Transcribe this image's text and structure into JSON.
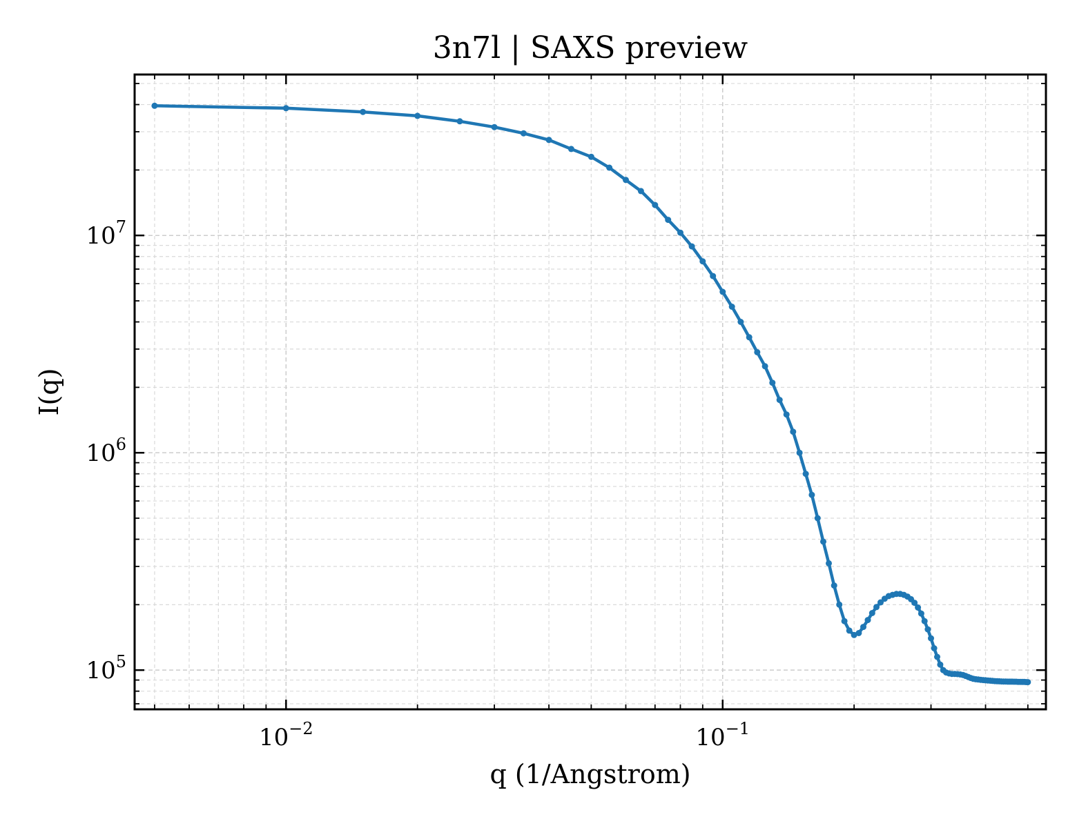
{
  "chart_data": {
    "type": "line",
    "title": "3n7l | SAXS preview",
    "xlabel": "q (1/Angstrom)",
    "ylabel": "I(q)",
    "xscale": "log",
    "yscale": "log",
    "xlim": [
      0.0045,
      0.55
    ],
    "ylim": [
      66000,
      55000000
    ],
    "grid": "on",
    "x_ticks": [
      {
        "value": 0.01,
        "base": "10",
        "exp": "−2"
      },
      {
        "value": 0.1,
        "base": "10",
        "exp": "−1"
      }
    ],
    "y_ticks": [
      {
        "value": 100000,
        "base": "10",
        "exp": "5"
      },
      {
        "value": 1000000,
        "base": "10",
        "exp": "6"
      },
      {
        "value": 10000000,
        "base": "10",
        "exp": "7"
      }
    ],
    "color": "#1f77b4",
    "series": [
      {
        "x": [
          0.005,
          0.01,
          0.015,
          0.02,
          0.025,
          0.03,
          0.035,
          0.04,
          0.045,
          0.05,
          0.055,
          0.06,
          0.065,
          0.07,
          0.075,
          0.08,
          0.085,
          0.09,
          0.095,
          0.1,
          0.105,
          0.11,
          0.115,
          0.12,
          0.125,
          0.13,
          0.135,
          0.14,
          0.145,
          0.15,
          0.155,
          0.16,
          0.165,
          0.17,
          0.175,
          0.18,
          0.185,
          0.19,
          0.195,
          0.2,
          0.205,
          0.21,
          0.215,
          0.22,
          0.225,
          0.23,
          0.235,
          0.24,
          0.245,
          0.25,
          0.255,
          0.26,
          0.265,
          0.27,
          0.275,
          0.28,
          0.285,
          0.29,
          0.295,
          0.3,
          0.305,
          0.31,
          0.315,
          0.32,
          0.325,
          0.33,
          0.335,
          0.34,
          0.345,
          0.35,
          0.355,
          0.36,
          0.365,
          0.37,
          0.375,
          0.38,
          0.385,
          0.39,
          0.395,
          0.4,
          0.405,
          0.41,
          0.415,
          0.42,
          0.425,
          0.43,
          0.435,
          0.44,
          0.445,
          0.45,
          0.455,
          0.46,
          0.465,
          0.47,
          0.475,
          0.48,
          0.485,
          0.49,
          0.495,
          0.5
        ],
        "y": [
          39500000,
          38500000,
          37000000,
          35500000,
          33500000,
          31500000,
          29500000,
          27500000,
          25000000,
          23000000,
          20500000,
          18000000,
          16000000,
          13800000,
          11800000,
          10300000,
          8900000,
          7600000,
          6500000,
          5500000,
          4700000,
          4000000,
          3400000,
          2900000,
          2500000,
          2100000,
          1750000,
          1500000,
          1250000,
          1000000,
          800000,
          640000,
          500000,
          390000,
          310000,
          245000,
          200000,
          168000,
          152000,
          145000,
          148000,
          158000,
          170000,
          183000,
          195000,
          205000,
          213000,
          219000,
          222000,
          224000,
          224000,
          222000,
          218000,
          212000,
          204000,
          194000,
          182000,
          168000,
          154000,
          140000,
          126000,
          115000,
          106000,
          100000,
          97500,
          96500,
          96000,
          96000,
          95800,
          95500,
          95000,
          94000,
          93000,
          92000,
          91200,
          90800,
          90500,
          90200,
          90000,
          89800,
          89600,
          89400,
          89200,
          89000,
          88900,
          88800,
          88700,
          88600,
          88600,
          88500,
          88500,
          88500,
          88400,
          88400,
          88300,
          88300,
          88200,
          88200,
          88100,
          88000
        ]
      }
    ]
  }
}
